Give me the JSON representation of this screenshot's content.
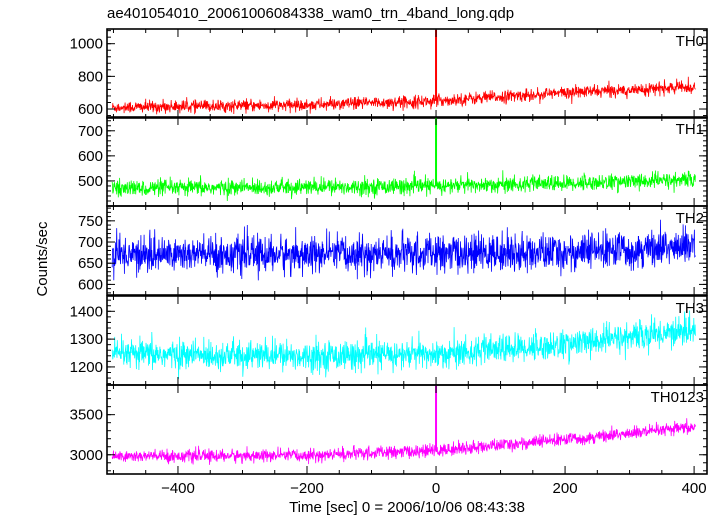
{
  "chart_data": {
    "type": "line",
    "title": "ae401054010_20061006084338_wam0_trn_4band_long.qdp",
    "xlabel": "Time [sec] 0 = 2006/10/06 08:43:38",
    "ylabel": "Counts/sec",
    "xlim": [
      -510,
      420
    ],
    "xticks": [
      -400,
      -200,
      0,
      200,
      400
    ],
    "xtick_labels": [
      "−400",
      "−200",
      "0",
      "200",
      "400"
    ],
    "grid": false,
    "panels": [
      {
        "name": "TH0",
        "color": "#ff0000",
        "ylim": [
          545,
          1090
        ],
        "yticks": [
          600,
          800,
          1000
        ],
        "ytick_labels": [
          "600",
          "800",
          "1000"
        ],
        "trend": [
          {
            "x": -500,
            "y": 610
          },
          {
            "x": -200,
            "y": 625
          },
          {
            "x": 0,
            "y": 650
          },
          {
            "x": 200,
            "y": 700
          },
          {
            "x": 400,
            "y": 735
          }
        ],
        "noise": 45,
        "spike": {
          "x": 0,
          "y": 1085
        }
      },
      {
        "name": "TH1",
        "color": "#00ff00",
        "ylim": [
          400,
          755
        ],
        "yticks": [
          500,
          600,
          700
        ],
        "ytick_labels": [
          "500",
          "600",
          "700"
        ],
        "trend": [
          {
            "x": -500,
            "y": 470
          },
          {
            "x": -200,
            "y": 475
          },
          {
            "x": 0,
            "y": 480
          },
          {
            "x": 200,
            "y": 490
          },
          {
            "x": 400,
            "y": 505
          }
        ],
        "noise": 38,
        "spike": {
          "x": 0,
          "y": 755
        }
      },
      {
        "name": "TH2",
        "color": "#0000ff",
        "ylim": [
          575,
          785
        ],
        "yticks": [
          600,
          650,
          700,
          750
        ],
        "ytick_labels": [
          "600",
          "650",
          "700",
          "750"
        ],
        "trend": [
          {
            "x": -500,
            "y": 672
          },
          {
            "x": -200,
            "y": 670
          },
          {
            "x": 0,
            "y": 672
          },
          {
            "x": 200,
            "y": 675
          },
          {
            "x": 400,
            "y": 690
          }
        ],
        "noise": 52
      },
      {
        "name": "TH3",
        "color": "#00ffff",
        "ylim": [
          1135,
          1455
        ],
        "yticks": [
          1200,
          1300,
          1400
        ],
        "ytick_labels": [
          "1200",
          "1300",
          "1400"
        ],
        "trend": [
          {
            "x": -500,
            "y": 1245
          },
          {
            "x": -200,
            "y": 1240
          },
          {
            "x": 0,
            "y": 1245
          },
          {
            "x": 200,
            "y": 1280
          },
          {
            "x": 400,
            "y": 1335
          }
        ],
        "noise": 62
      },
      {
        "name": "TH0123",
        "color": "#ff00ff",
        "ylim": [
          2760,
          3870
        ],
        "yticks": [
          3000,
          3500
        ],
        "ytick_labels": [
          "3000",
          "3500"
        ],
        "trend": [
          {
            "x": -500,
            "y": 2980
          },
          {
            "x": -200,
            "y": 2990
          },
          {
            "x": 0,
            "y": 3050
          },
          {
            "x": 200,
            "y": 3190
          },
          {
            "x": 400,
            "y": 3340
          }
        ],
        "noise": 95,
        "spike": {
          "x": 0,
          "y": 3870
        }
      }
    ]
  }
}
